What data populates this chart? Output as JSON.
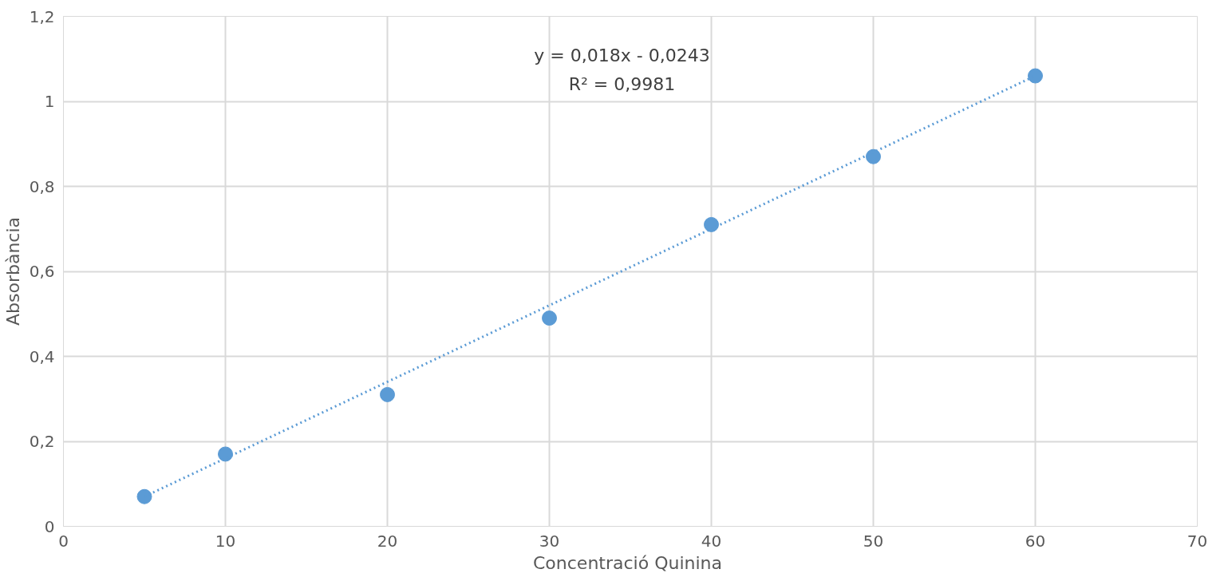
{
  "chart_data": {
    "type": "scatter",
    "xlabel": "Concentració  Quinina",
    "ylabel": "Absorbància",
    "x": [
      5,
      10,
      20,
      30,
      40,
      50,
      60
    ],
    "series": [
      {
        "color": "#5b9bd5",
        "values": [
          0.07,
          0.17,
          0.31,
          0.49,
          0.71,
          0.87,
          1.06
        ],
        "marker": "circle"
      },
      {
        "type": "line",
        "color": "#5b9bd5",
        "x": [
          5,
          60
        ],
        "values": [
          0.07,
          1.06
        ],
        "line_style": "dotted"
      }
    ],
    "annotations": [
      "y = 0,018x - 0,0243",
      "R² = 0,9981"
    ],
    "xlim": [
      0,
      70
    ],
    "ylim": [
      0,
      1.2
    ],
    "xticks": [
      0,
      10,
      20,
      30,
      40,
      50,
      60,
      70
    ],
    "yticks": [
      0,
      {
        "value": 0.2,
        "label": "0,2"
      },
      {
        "value": 0.4,
        "label": "0,4"
      },
      {
        "value": 0.6,
        "label": "0,6"
      },
      {
        "value": 0.8,
        "label": "0,8"
      },
      1,
      {
        "value": 1.2,
        "label": "1,2"
      }
    ],
    "grid": true
  }
}
